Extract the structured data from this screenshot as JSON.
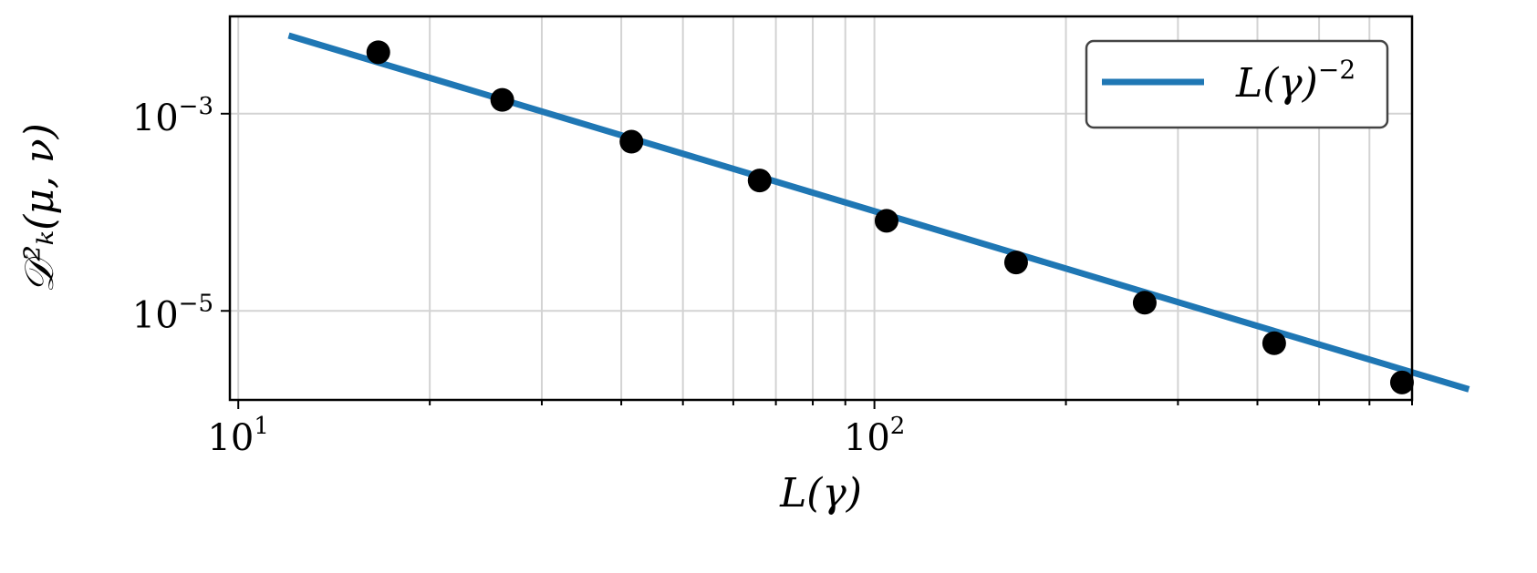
{
  "chart_data": {
    "type": "scatter",
    "xscale": "log",
    "yscale": "log",
    "xlim": [
      9.7,
      700
    ],
    "ylim": [
      1.25e-06,
      0.0097
    ],
    "x_ticks": [
      {
        "value": 10,
        "base": "10",
        "exp": "1"
      },
      {
        "value": 100,
        "base": "10",
        "exp": "2"
      }
    ],
    "y_ticks": [
      {
        "value": 0.001,
        "base": "10",
        "exp": "−3"
      },
      {
        "value": 1e-05,
        "base": "10",
        "exp": "−5"
      }
    ],
    "xlabel": "L(γ)",
    "ylabel": "𝒟²ₖ(μ, ν)",
    "grid": true,
    "legend_position": "top-right",
    "legend": [
      {
        "label": "L(γ)",
        "exp": "−2",
        "color": "#1f77b4"
      }
    ],
    "points": [
      {
        "x": 16.6,
        "y": 0.0042
      },
      {
        "x": 26.0,
        "y": 0.00138
      },
      {
        "x": 41.5,
        "y": 0.00052
      },
      {
        "x": 66.0,
        "y": 0.00021
      },
      {
        "x": 104.5,
        "y": 8.2e-05
      },
      {
        "x": 167.0,
        "y": 3.1e-05
      },
      {
        "x": 266.0,
        "y": 1.21e-05
      },
      {
        "x": 425.0,
        "y": 4.7e-06
      },
      {
        "x": 675.0,
        "y": 1.88e-06
      }
    ],
    "reference_line": {
      "name": "L(γ)^-2",
      "x": [
        12.0,
        860.0
      ],
      "y": [
        0.0062,
        1.6e-06
      ],
      "color": "#1f77b4"
    },
    "marker_color": "#000000"
  }
}
